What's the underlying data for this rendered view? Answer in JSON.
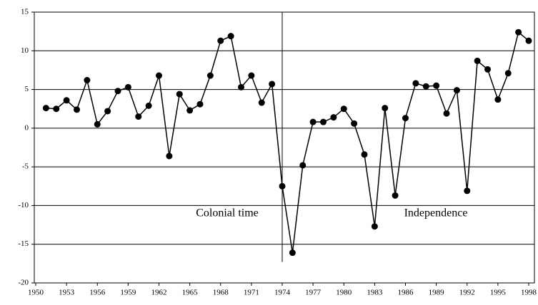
{
  "chart_data": {
    "type": "line",
    "x": [
      1951,
      1952,
      1953,
      1954,
      1955,
      1956,
      1957,
      1958,
      1959,
      1960,
      1961,
      1962,
      1963,
      1964,
      1965,
      1966,
      1967,
      1968,
      1969,
      1970,
      1971,
      1972,
      1973,
      1974,
      1975,
      1976,
      1977,
      1978,
      1979,
      1980,
      1981,
      1982,
      1983,
      1984,
      1985,
      1986,
      1987,
      1988,
      1989,
      1990,
      1991,
      1992,
      1993,
      1994,
      1995,
      1996,
      1997,
      1998
    ],
    "values": [
      2.6,
      2.5,
      3.6,
      2.4,
      6.2,
      0.5,
      2.2,
      4.8,
      5.3,
      1.5,
      2.9,
      6.8,
      -3.6,
      4.4,
      2.3,
      3.1,
      6.8,
      11.3,
      11.9,
      5.3,
      6.8,
      3.3,
      5.7,
      -7.5,
      -16.1,
      -4.8,
      0.8,
      0.8,
      1.4,
      2.5,
      0.6,
      -3.4,
      -12.7,
      2.6,
      -8.7,
      1.3,
      5.8,
      5.4,
      5.5,
      1.9,
      4.9,
      -8.1,
      8.7,
      7.6,
      3.7,
      7.1,
      12.4,
      11.3
    ],
    "color": "#000000",
    "xlim": [
      1950,
      1998
    ],
    "xticks": [
      1950,
      1953,
      1956,
      1959,
      1962,
      1965,
      1968,
      1971,
      1974,
      1977,
      1980,
      1983,
      1986,
      1989,
      1992,
      1995,
      1998
    ],
    "ylim": [
      -20,
      15
    ],
    "yticks": [
      -20,
      -15,
      -10,
      -5,
      0,
      5,
      10,
      15
    ],
    "grid": true,
    "divider": 1974,
    "annotations": [
      "Colonial time",
      "Independence"
    ]
  }
}
